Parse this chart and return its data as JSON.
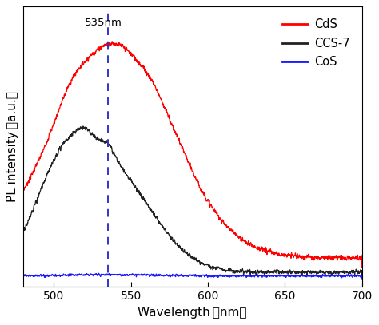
{
  "x_min": 480,
  "x_max": 700,
  "x_ticks": [
    500,
    550,
    600,
    650,
    700
  ],
  "xlabel": "Wavelength（nm）",
  "ylabel": "PL intensity（a.u.）",
  "dashed_line_x": 535,
  "annotation_text": "535nm",
  "legend_labels": [
    "CdS",
    "CCS-7",
    "CoS"
  ],
  "cds_color": "#ff0000",
  "ccs7_color": "#222222",
  "cos_color": "#1a1aff",
  "dashed_color": "#3333cc",
  "background_color": "#ffffff"
}
